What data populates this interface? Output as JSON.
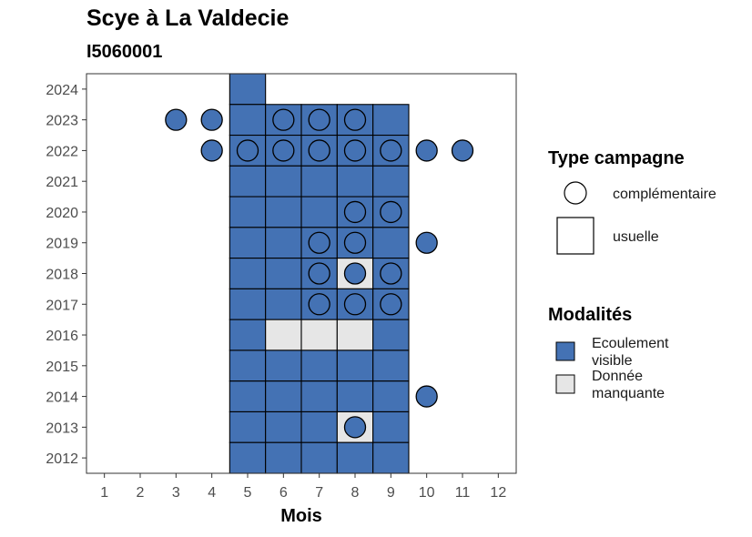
{
  "chart_data": {
    "type": "heatmap",
    "title": "Scye à La Valdecie",
    "subtitle": "I5060001",
    "xlabel": "Mois",
    "ylabel": "",
    "x_ticks": [
      1,
      2,
      3,
      4,
      5,
      6,
      7,
      8,
      9,
      10,
      11,
      12
    ],
    "y_ticks": [
      2012,
      2013,
      2014,
      2015,
      2016,
      2017,
      2018,
      2019,
      2020,
      2021,
      2022,
      2023,
      2024
    ],
    "xlim": [
      0.5,
      12.5
    ],
    "ylim": [
      2011.5,
      2024.5
    ],
    "modalites": [
      {
        "label": "Ecoulement visible",
        "color": "#4472b4"
      },
      {
        "label": "Donnée manquante",
        "color": "#e6e6e6"
      }
    ],
    "type_campagne": [
      {
        "label": "complémentaire",
        "shape": "circle"
      },
      {
        "label": "usuelle",
        "shape": "square"
      }
    ],
    "usuelle": [
      {
        "month": 5,
        "year": 2024,
        "modalite": "Ecoulement visible"
      },
      {
        "month": 5,
        "year": 2023,
        "modalite": "Ecoulement visible"
      },
      {
        "month": 6,
        "year": 2023,
        "modalite": "Ecoulement visible"
      },
      {
        "month": 7,
        "year": 2023,
        "modalite": "Ecoulement visible"
      },
      {
        "month": 8,
        "year": 2023,
        "modalite": "Ecoulement visible"
      },
      {
        "month": 9,
        "year": 2023,
        "modalite": "Ecoulement visible"
      },
      {
        "month": 5,
        "year": 2022,
        "modalite": "Ecoulement visible"
      },
      {
        "month": 6,
        "year": 2022,
        "modalite": "Ecoulement visible"
      },
      {
        "month": 7,
        "year": 2022,
        "modalite": "Ecoulement visible"
      },
      {
        "month": 8,
        "year": 2022,
        "modalite": "Ecoulement visible"
      },
      {
        "month": 9,
        "year": 2022,
        "modalite": "Ecoulement visible"
      },
      {
        "month": 5,
        "year": 2021,
        "modalite": "Ecoulement visible"
      },
      {
        "month": 6,
        "year": 2021,
        "modalite": "Ecoulement visible"
      },
      {
        "month": 7,
        "year": 2021,
        "modalite": "Ecoulement visible"
      },
      {
        "month": 8,
        "year": 2021,
        "modalite": "Ecoulement visible"
      },
      {
        "month": 9,
        "year": 2021,
        "modalite": "Ecoulement visible"
      },
      {
        "month": 5,
        "year": 2020,
        "modalite": "Ecoulement visible"
      },
      {
        "month": 6,
        "year": 2020,
        "modalite": "Ecoulement visible"
      },
      {
        "month": 7,
        "year": 2020,
        "modalite": "Ecoulement visible"
      },
      {
        "month": 8,
        "year": 2020,
        "modalite": "Ecoulement visible"
      },
      {
        "month": 9,
        "year": 2020,
        "modalite": "Ecoulement visible"
      },
      {
        "month": 5,
        "year": 2019,
        "modalite": "Ecoulement visible"
      },
      {
        "month": 6,
        "year": 2019,
        "modalite": "Ecoulement visible"
      },
      {
        "month": 7,
        "year": 2019,
        "modalite": "Ecoulement visible"
      },
      {
        "month": 8,
        "year": 2019,
        "modalite": "Ecoulement visible"
      },
      {
        "month": 9,
        "year": 2019,
        "modalite": "Ecoulement visible"
      },
      {
        "month": 5,
        "year": 2018,
        "modalite": "Ecoulement visible"
      },
      {
        "month": 6,
        "year": 2018,
        "modalite": "Ecoulement visible"
      },
      {
        "month": 7,
        "year": 2018,
        "modalite": "Ecoulement visible"
      },
      {
        "month": 8,
        "year": 2018,
        "modalite": "Donnée manquante"
      },
      {
        "month": 9,
        "year": 2018,
        "modalite": "Ecoulement visible"
      },
      {
        "month": 5,
        "year": 2017,
        "modalite": "Ecoulement visible"
      },
      {
        "month": 6,
        "year": 2017,
        "modalite": "Ecoulement visible"
      },
      {
        "month": 7,
        "year": 2017,
        "modalite": "Ecoulement visible"
      },
      {
        "month": 8,
        "year": 2017,
        "modalite": "Ecoulement visible"
      },
      {
        "month": 9,
        "year": 2017,
        "modalite": "Ecoulement visible"
      },
      {
        "month": 5,
        "year": 2016,
        "modalite": "Ecoulement visible"
      },
      {
        "month": 6,
        "year": 2016,
        "modalite": "Donnée manquante"
      },
      {
        "month": 7,
        "year": 2016,
        "modalite": "Donnée manquante"
      },
      {
        "month": 8,
        "year": 2016,
        "modalite": "Donnée manquante"
      },
      {
        "month": 9,
        "year": 2016,
        "modalite": "Ecoulement visible"
      },
      {
        "month": 5,
        "year": 2015,
        "modalite": "Ecoulement visible"
      },
      {
        "month": 6,
        "year": 2015,
        "modalite": "Ecoulement visible"
      },
      {
        "month": 7,
        "year": 2015,
        "modalite": "Ecoulement visible"
      },
      {
        "month": 8,
        "year": 2015,
        "modalite": "Ecoulement visible"
      },
      {
        "month": 9,
        "year": 2015,
        "modalite": "Ecoulement visible"
      },
      {
        "month": 5,
        "year": 2014,
        "modalite": "Ecoulement visible"
      },
      {
        "month": 6,
        "year": 2014,
        "modalite": "Ecoulement visible"
      },
      {
        "month": 7,
        "year": 2014,
        "modalite": "Ecoulement visible"
      },
      {
        "month": 8,
        "year": 2014,
        "modalite": "Ecoulement visible"
      },
      {
        "month": 9,
        "year": 2014,
        "modalite": "Ecoulement visible"
      },
      {
        "month": 5,
        "year": 2013,
        "modalite": "Ecoulement visible"
      },
      {
        "month": 6,
        "year": 2013,
        "modalite": "Ecoulement visible"
      },
      {
        "month": 7,
        "year": 2013,
        "modalite": "Ecoulement visible"
      },
      {
        "month": 8,
        "year": 2013,
        "modalite": "Donnée manquante"
      },
      {
        "month": 9,
        "year": 2013,
        "modalite": "Ecoulement visible"
      },
      {
        "month": 5,
        "year": 2012,
        "modalite": "Ecoulement visible"
      },
      {
        "month": 6,
        "year": 2012,
        "modalite": "Ecoulement visible"
      },
      {
        "month": 7,
        "year": 2012,
        "modalite": "Ecoulement visible"
      },
      {
        "month": 8,
        "year": 2012,
        "modalite": "Ecoulement visible"
      },
      {
        "month": 9,
        "year": 2012,
        "modalite": "Ecoulement visible"
      }
    ],
    "complementaire": [
      {
        "month": 3,
        "year": 2023,
        "modalite": "Ecoulement visible"
      },
      {
        "month": 4,
        "year": 2023,
        "modalite": "Ecoulement visible"
      },
      {
        "month": 6,
        "year": 2023,
        "modalite": "Ecoulement visible"
      },
      {
        "month": 7,
        "year": 2023,
        "modalite": "Ecoulement visible"
      },
      {
        "month": 8,
        "year": 2023,
        "modalite": "Ecoulement visible"
      },
      {
        "month": 4,
        "year": 2022,
        "modalite": "Ecoulement visible"
      },
      {
        "month": 5,
        "year": 2022,
        "modalite": "Ecoulement visible"
      },
      {
        "month": 6,
        "year": 2022,
        "modalite": "Ecoulement visible"
      },
      {
        "month": 7,
        "year": 2022,
        "modalite": "Ecoulement visible"
      },
      {
        "month": 8,
        "year": 2022,
        "modalite": "Ecoulement visible"
      },
      {
        "month": 9,
        "year": 2022,
        "modalite": "Ecoulement visible"
      },
      {
        "month": 10,
        "year": 2022,
        "modalite": "Ecoulement visible"
      },
      {
        "month": 11,
        "year": 2022,
        "modalite": "Ecoulement visible"
      },
      {
        "month": 8,
        "year": 2020,
        "modalite": "Ecoulement visible"
      },
      {
        "month": 9,
        "year": 2020,
        "modalite": "Ecoulement visible"
      },
      {
        "month": 7,
        "year": 2019,
        "modalite": "Ecoulement visible"
      },
      {
        "month": 8,
        "year": 2019,
        "modalite": "Ecoulement visible"
      },
      {
        "month": 10,
        "year": 2019,
        "modalite": "Ecoulement visible"
      },
      {
        "month": 7,
        "year": 2018,
        "modalite": "Ecoulement visible"
      },
      {
        "month": 8,
        "year": 2018,
        "modalite": "Ecoulement visible"
      },
      {
        "month": 9,
        "year": 2018,
        "modalite": "Ecoulement visible"
      },
      {
        "month": 7,
        "year": 2017,
        "modalite": "Ecoulement visible"
      },
      {
        "month": 8,
        "year": 2017,
        "modalite": "Ecoulement visible"
      },
      {
        "month": 9,
        "year": 2017,
        "modalite": "Ecoulement visible"
      },
      {
        "month": 10,
        "year": 2014,
        "modalite": "Ecoulement visible"
      },
      {
        "month": 8,
        "year": 2013,
        "modalite": "Ecoulement visible"
      }
    ]
  }
}
